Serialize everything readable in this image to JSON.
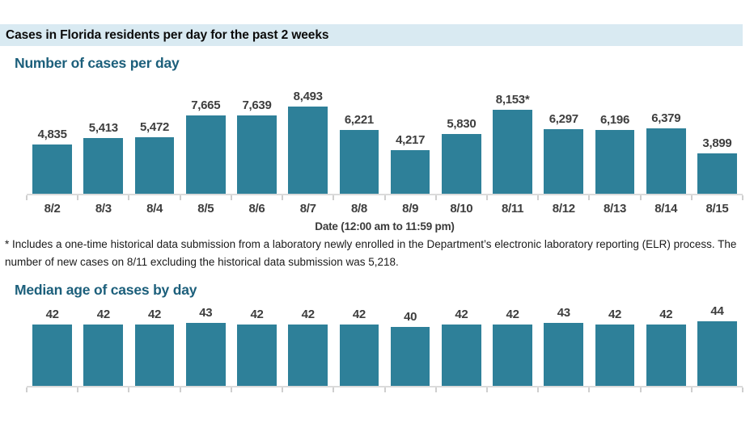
{
  "header": {
    "title": "Cases in Florida residents per day for the past 2 weeks"
  },
  "footnote": "* Includes a one-time historical data submission from a laboratory newly enrolled in the Department’s electronic laboratory reporting (ELR) process. The number of new cases on 8/11 excluding the historical data submission was 5,218.",
  "colors": {
    "bar": "#2e8099",
    "header_band": "#d9eaf2",
    "section_title": "#1c5f7b",
    "axis_line": "#dbdbdb",
    "label_text": "#3e3e3e"
  },
  "chart_data": [
    {
      "type": "bar",
      "title": "Number of cases per day",
      "categories": [
        "8/2",
        "8/3",
        "8/4",
        "8/5",
        "8/6",
        "8/7",
        "8/8",
        "8/9",
        "8/10",
        "8/11",
        "8/12",
        "8/13",
        "8/14",
        "8/15"
      ],
      "values": [
        4835,
        5413,
        5472,
        7665,
        7639,
        8493,
        6221,
        4217,
        5830,
        8153,
        6297,
        6196,
        6379,
        3899
      ],
      "value_labels": [
        "4,835",
        "5,413",
        "5,472",
        "7,665",
        "7,639",
        "8,493",
        "6,221",
        "4,217",
        "5,830",
        "8,153*",
        "6,297",
        "6,196",
        "6,379",
        "3,899"
      ],
      "xlabel": "Date (12:00 am to 11:59 pm)",
      "ylabel": "",
      "ylim": [
        0,
        8500
      ],
      "grid": false,
      "legend": null,
      "annotation_note": "8/11 value flagged with asterisk; see footnote"
    },
    {
      "type": "bar",
      "title": "Median age of cases by day",
      "values": [
        42,
        42,
        42,
        43,
        42,
        42,
        42,
        40,
        42,
        42,
        43,
        42,
        42,
        44
      ],
      "value_labels": [
        "42",
        "42",
        "42",
        "43",
        "42",
        "42",
        "42",
        "40",
        "42",
        "42",
        "43",
        "42",
        "42",
        "44"
      ],
      "xlabel": "",
      "ylabel": "",
      "ylim": [
        0,
        44
      ],
      "grid": false,
      "legend": null
    }
  ]
}
